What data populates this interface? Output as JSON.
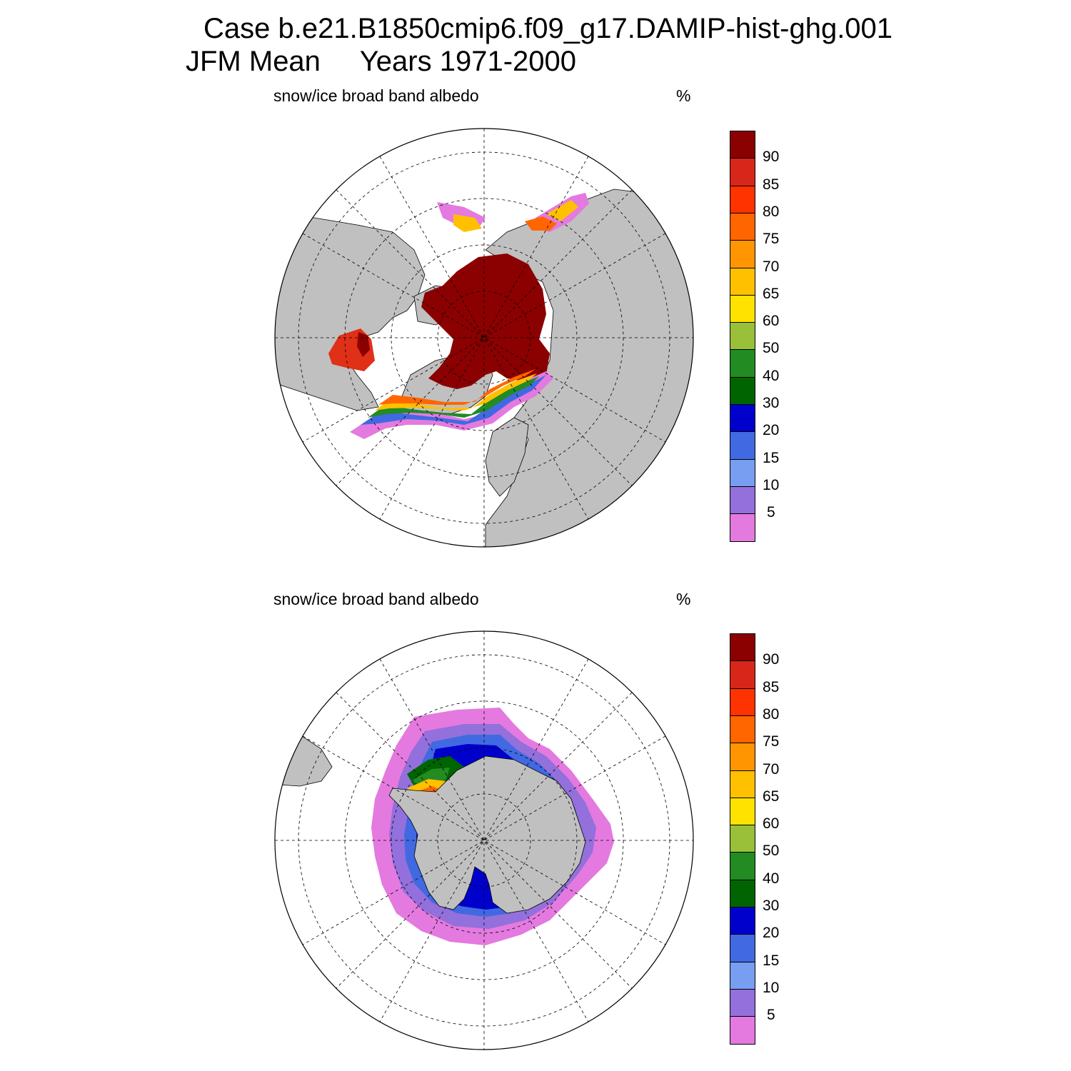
{
  "title": {
    "line1": "Case b.e21.B1850cmip6.f09_g17.DAMIP-hist-ghg.001",
    "line2": "JFM Mean     Years 1971-2000"
  },
  "panels": [
    {
      "id": "north",
      "variable": "snow/ice broad band albedo",
      "units": "%",
      "hemisphere": "Northern"
    },
    {
      "id": "south",
      "variable": "snow/ice broad band albedo",
      "units": "%",
      "hemisphere": "Southern"
    }
  ],
  "colorbar": {
    "levels": [
      "90",
      "85",
      "80",
      "75",
      "70",
      "65",
      "60",
      "50",
      "40",
      "30",
      "20",
      "15",
      "10",
      "5"
    ],
    "colors": [
      "#8b0000",
      "#d9261a",
      "#ff3300",
      "#ff6600",
      "#ff9500",
      "#ffc000",
      "#ffe200",
      "#9ac03a",
      "#228b22",
      "#006400",
      "#0000cd",
      "#4169e1",
      "#779ef0",
      "#9370db",
      "#e47adf"
    ]
  },
  "style": {
    "land": "#c0c0c0",
    "ocean": "#ffffff",
    "grid": "#000000"
  }
}
